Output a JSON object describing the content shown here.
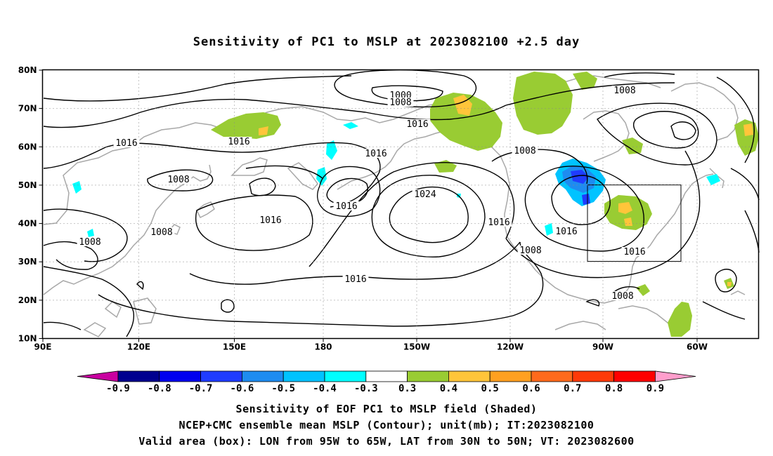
{
  "title": "Sensitivity of PC1 to MSLP at 2023082100 +2.5 day",
  "map": {
    "lat_labels": [
      "80N",
      "70N",
      "60N",
      "50N",
      "40N",
      "30N",
      "20N",
      "10N"
    ],
    "lon_labels": [
      "90E",
      "120E",
      "150E",
      "180",
      "150W",
      "120W",
      "90W",
      "60W"
    ],
    "contour_labels": [
      {
        "text": "1000"
      },
      {
        "text": "1008"
      },
      {
        "text": "1016"
      },
      {
        "text": "1008"
      },
      {
        "text": "1016"
      },
      {
        "text": "1016"
      },
      {
        "text": "1016"
      },
      {
        "text": "1008"
      },
      {
        "text": "1008"
      },
      {
        "text": "1016"
      },
      {
        "text": "1008"
      },
      {
        "text": "1024"
      },
      {
        "text": "1016"
      },
      {
        "text": "1016"
      },
      {
        "text": "1016"
      },
      {
        "text": "1008"
      },
      {
        "text": "1016"
      },
      {
        "text": "1008"
      },
      {
        "text": "1016"
      },
      {
        "text": "1008"
      }
    ],
    "valid_box": {
      "lon_from": "95W",
      "lon_to": "65W",
      "lat_from": "30N",
      "lat_to": "50N"
    }
  },
  "colorbar": {
    "labels": [
      "-0.9",
      "-0.8",
      "-0.7",
      "-0.6",
      "-0.5",
      "-0.4",
      "-0.3",
      "0.3",
      "0.4",
      "0.5",
      "0.6",
      "0.7",
      "0.8",
      "0.9"
    ],
    "colors": [
      "#00008f",
      "#0000ef",
      "#1f3cff",
      "#1e8cf0",
      "#00c3ff",
      "#00ffff",
      "#ffffff",
      "#99cc33",
      "#ffc53a",
      "#ffa020",
      "#ff6a1c",
      "#ff3a08",
      "#ff0000"
    ],
    "low_arrow_color": "#c800a0",
    "high_arrow_color": "#ff9ecc"
  },
  "captions": [
    "Sensitivity of EOF PC1 to MSLP field (Shaded)",
    "NCEP+CMC ensemble mean MSLP (Contour); unit(mb); IT:2023082100",
    "Valid area (box): LON from 95W to 65W, LAT from 30N to 50N; VT: 2023082600"
  ]
}
